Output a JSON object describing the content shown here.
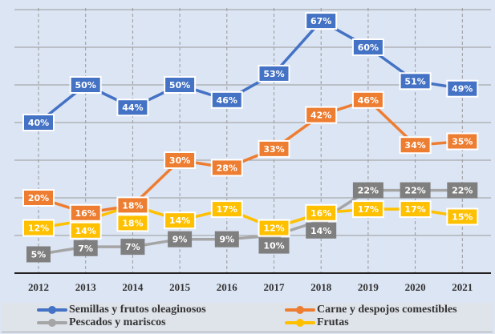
{
  "chart_data": {
    "type": "line",
    "title": "",
    "xlabel": "",
    "ylabel": "",
    "categories": [
      "2012",
      "2013",
      "2014",
      "2015",
      "2016",
      "2017",
      "2018",
      "2019",
      "2020",
      "2021"
    ],
    "ylim": [
      0,
      70
    ],
    "grid": true,
    "legend_position": "bottom",
    "series": [
      {
        "name": "Semillas y frutos oleaginosos",
        "color": "#4472c4",
        "values": [
          40,
          50,
          44,
          50,
          46,
          53,
          67,
          60,
          51,
          49
        ]
      },
      {
        "name": "Carne y despojos comestibles",
        "color": "#ed7d31",
        "values": [
          20,
          16,
          18,
          30,
          28,
          33,
          42,
          46,
          34,
          35
        ]
      },
      {
        "name": "Pescados y mariscos",
        "color": "#a5a5a5",
        "label_color": "#7f7f7f",
        "values": [
          5,
          7,
          7,
          9,
          9,
          10,
          14,
          22,
          22,
          22
        ]
      },
      {
        "name": "Frutas",
        "color": "#ffc000",
        "values": [
          12,
          14,
          18,
          14,
          17,
          12,
          16,
          17,
          17,
          15
        ]
      }
    ]
  }
}
